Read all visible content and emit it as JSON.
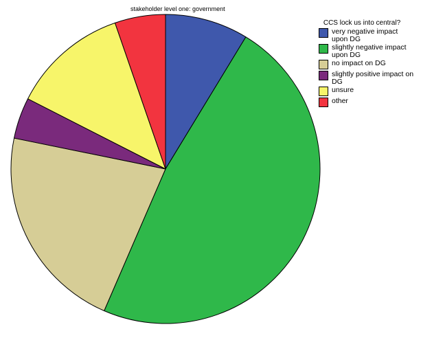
{
  "chart_data": {
    "type": "pie",
    "title": "stakeholder level one: government",
    "legend": {
      "title": "CCS lock us into central?",
      "placement": "right"
    },
    "start_angle_deg": 0,
    "direction": "clockwise",
    "slices": [
      {
        "label": "very negative impact upon DG",
        "value": 8.7,
        "color": "#3f58ac"
      },
      {
        "label": "slightly negative impact upon DG",
        "value": 47.8,
        "color": "#2fb84a"
      },
      {
        "label": "no impact on DG",
        "value": 21.7,
        "color": "#d6cd96"
      },
      {
        "label": "slightly positive impact on DG",
        "value": 4.3,
        "color": "#7a2a7c"
      },
      {
        "label": "unsure",
        "value": 12.2,
        "color": "#f7f56a"
      },
      {
        "label": "other",
        "value": 5.3,
        "color": "#f2343f"
      }
    ]
  }
}
